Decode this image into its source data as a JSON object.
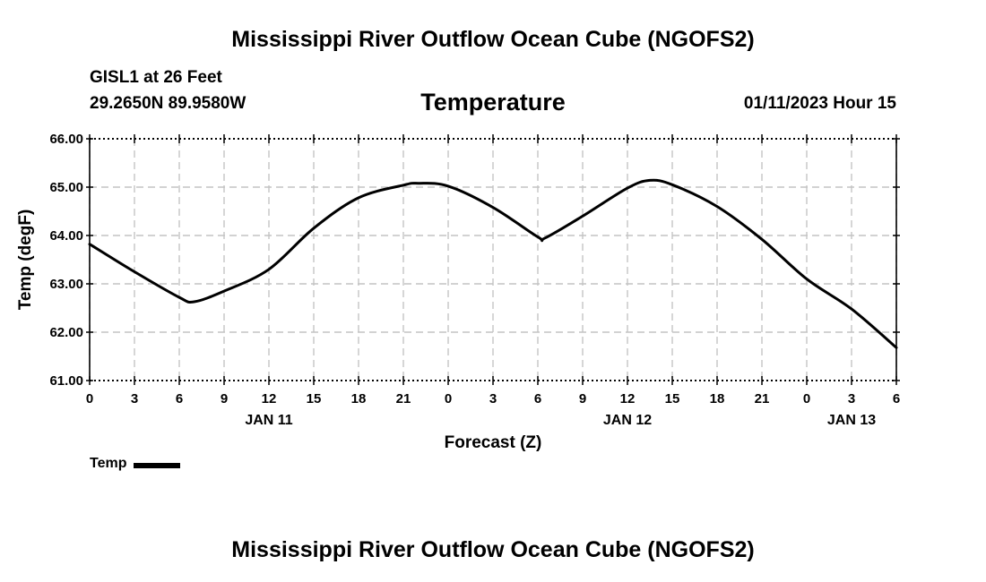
{
  "header": {
    "title": "Mississippi River Outflow Ocean Cube (NGOFS2)",
    "station": "GISL1 at 26 Feet",
    "coordinates": "29.2650N  89.9580W",
    "subtitle": "Temperature",
    "datetime": "01/11/2023 Hour 15"
  },
  "footer": {
    "title": "Mississippi River Outflow Ocean Cube (NGOFS2)"
  },
  "legend": {
    "label": "Temp"
  },
  "chart_data": {
    "type": "line",
    "title": "Temperature",
    "xlabel": "Forecast (Z)",
    "ylabel": "Temp (degF)",
    "xlim": [
      0,
      54
    ],
    "ylim": [
      61,
      66
    ],
    "grid": true,
    "x_tick_labels": [
      "0",
      "3",
      "6",
      "9",
      "12",
      "15",
      "18",
      "21",
      "0",
      "3",
      "6",
      "9",
      "12",
      "15",
      "18",
      "21",
      "0",
      "3",
      "6"
    ],
    "y_tick_labels": [
      "61.00",
      "62.00",
      "63.00",
      "64.00",
      "65.00",
      "66.00"
    ],
    "day_labels": [
      {
        "hour": 12,
        "label": "JAN 11"
      },
      {
        "hour": 36,
        "label": "JAN 12"
      },
      {
        "hour": 51,
        "label": "JAN 13"
      }
    ],
    "series": [
      {
        "name": "Temp",
        "color": "#000000",
        "x": [
          0,
          3,
          6,
          7,
          9,
          12,
          15,
          18,
          21,
          22,
          24,
          27,
          30,
          30.5,
          33,
          36,
          37.5,
          39,
          42,
          45,
          48,
          51,
          54
        ],
        "y": [
          63.82,
          63.25,
          62.72,
          62.63,
          62.85,
          63.3,
          64.15,
          64.78,
          65.04,
          65.08,
          65.02,
          64.58,
          63.97,
          63.95,
          64.4,
          64.98,
          65.14,
          65.05,
          64.6,
          63.92,
          63.1,
          62.48,
          61.68
        ]
      }
    ]
  }
}
